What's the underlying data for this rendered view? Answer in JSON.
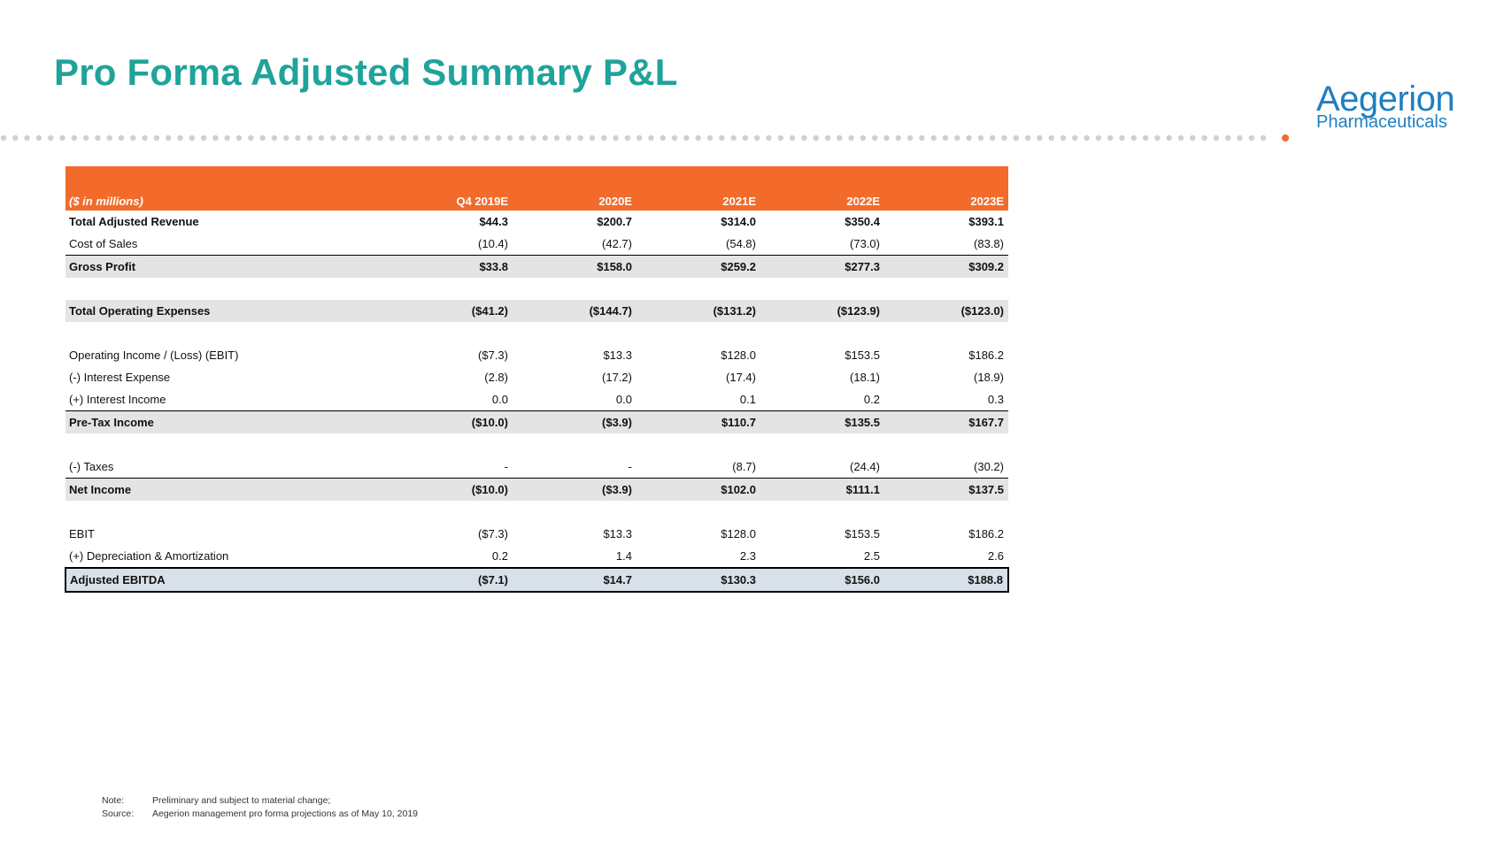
{
  "header": {
    "title": "Pro Forma Adjusted Summary P&L",
    "logo_main": "Aegerion",
    "logo_sub": "Pharmaceuticals"
  },
  "colors": {
    "title": "#1fa39a",
    "orange": "#f26b2a",
    "logo": "#1f7fc1",
    "shade": "#e4e4e4",
    "final": "#d8e1ea"
  },
  "table": {
    "unit_label": "($ in millions)",
    "columns": [
      "Q4 2019E",
      "2020E",
      "2021E",
      "2022E",
      "2023E"
    ],
    "rows": [
      {
        "label": "Total Adjusted Revenue",
        "values": [
          "$44.3",
          "$200.7",
          "$314.0",
          "$350.4",
          "$393.1"
        ]
      },
      {
        "label": "Cost of Sales",
        "values": [
          "(10.4)",
          "(42.7)",
          "(54.8)",
          "(73.0)",
          "(83.8)"
        ]
      },
      {
        "label": "Gross Profit",
        "values": [
          "$33.8",
          "$158.0",
          "$259.2",
          "$277.3",
          "$309.2"
        ]
      },
      {
        "label": "Total Operating Expenses",
        "values": [
          "($41.2)",
          "($144.7)",
          "($131.2)",
          "($123.9)",
          "($123.0)"
        ]
      },
      {
        "label": "Operating Income / (Loss) (EBIT)",
        "values": [
          "($7.3)",
          "$13.3",
          "$128.0",
          "$153.5",
          "$186.2"
        ]
      },
      {
        "label": "(-) Interest Expense",
        "values": [
          "(2.8)",
          "(17.2)",
          "(17.4)",
          "(18.1)",
          "(18.9)"
        ]
      },
      {
        "label": "(+) Interest Income",
        "values": [
          "0.0",
          "0.0",
          "0.1",
          "0.2",
          "0.3"
        ]
      },
      {
        "label": "Pre-Tax Income",
        "values": [
          "($10.0)",
          "($3.9)",
          "$110.7",
          "$135.5",
          "$167.7"
        ]
      },
      {
        "label": "(-) Taxes",
        "values": [
          "-",
          "-",
          "(8.7)",
          "(24.4)",
          "(30.2)"
        ]
      },
      {
        "label": "Net Income",
        "values": [
          "($10.0)",
          "($3.9)",
          "$102.0",
          "$111.1",
          "$137.5"
        ]
      },
      {
        "label": "EBIT",
        "values": [
          "($7.3)",
          "$13.3",
          "$128.0",
          "$153.5",
          "$186.2"
        ]
      },
      {
        "label": "(+) Depreciation & Amortization",
        "values": [
          "0.2",
          "1.4",
          "2.3",
          "2.5",
          "2.6"
        ]
      },
      {
        "label": "Adjusted EBITDA",
        "values": [
          "($7.1)",
          "$14.7",
          "$130.3",
          "$156.0",
          "$188.8"
        ]
      }
    ]
  },
  "notes": {
    "note_key": "Note:",
    "note_text": "Preliminary and subject to material change;",
    "source_key": "Source:",
    "source_text": "Aegerion management pro forma projections as of May 10, 2019"
  }
}
